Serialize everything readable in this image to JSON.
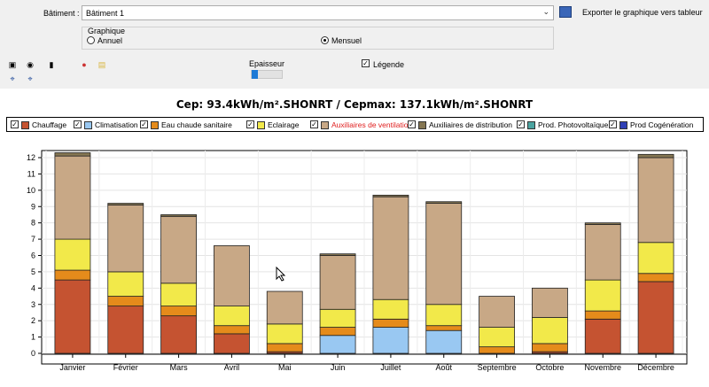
{
  "header": {
    "batiment_label": "Bâtiment :",
    "batiment_value": "Bâtiment 1",
    "export_label": "Exporter le graphique vers tableur"
  },
  "graphique": {
    "legend": "Graphique",
    "option_annuel": "Annuel",
    "option_mensuel": "Mensuel",
    "selected": "Mensuel"
  },
  "toolbar": {
    "epaisseur_label": "Epaisseur",
    "epaisseur_value": 0.1,
    "legende_label": "Légende",
    "legende_checked": true,
    "icons": [
      "save-icon",
      "camera-icon",
      "bar-chart-icon",
      "palette-icon",
      "folder-icon",
      "zoom-fit-icon",
      "zoom-reset-icon"
    ]
  },
  "chart_data": {
    "type": "bar",
    "stacked": true,
    "title": "Cep: 93.4kWh/m².SHONRT / Cepmax: 137.1kWh/m².SHONRT",
    "ylim": [
      0,
      12
    ],
    "yticks": [
      0,
      1,
      2,
      3,
      4,
      5,
      6,
      7,
      8,
      9,
      10,
      11,
      12
    ],
    "grid": true,
    "legend_position": "top",
    "categories": [
      "Janvier",
      "Février",
      "Mars",
      "Avril",
      "Mai",
      "Juin",
      "Juillet",
      "Août",
      "Septembre",
      "Octobre",
      "Novembre",
      "Décembre"
    ],
    "series": [
      {
        "name": "Chauffage",
        "color": "#c55331",
        "values": [
          4.5,
          2.9,
          2.3,
          1.2,
          0.1,
          0,
          0,
          0,
          0,
          0.1,
          2.1,
          4.4
        ]
      },
      {
        "name": "Climatisation",
        "color": "#99c8f2",
        "values": [
          0,
          0,
          0,
          0,
          0,
          1.1,
          1.6,
          1.4,
          0,
          0,
          0,
          0
        ]
      },
      {
        "name": "Eau chaude sanitaire",
        "color": "#e58b1b",
        "values": [
          0.6,
          0.6,
          0.6,
          0.5,
          0.5,
          0.5,
          0.5,
          0.3,
          0.4,
          0.5,
          0.5,
          0.5
        ]
      },
      {
        "name": "Eclairage",
        "color": "#f2e94a",
        "values": [
          1.9,
          1.5,
          1.4,
          1.2,
          1.2,
          1.1,
          1.2,
          1.3,
          1.2,
          1.6,
          1.9,
          1.9
        ]
      },
      {
        "name": "Auxiliaires de ventilation",
        "color": "#c8a886",
        "values": [
          5.1,
          4.1,
          4.1,
          3.7,
          2.0,
          3.3,
          6.3,
          6.2,
          1.9,
          1.8,
          3.4,
          5.2
        ]
      },
      {
        "name": "Auxiliaires de distribution",
        "color": "#857652",
        "values": [
          0.2,
          0.1,
          0.1,
          0,
          0,
          0.1,
          0.1,
          0.1,
          0,
          0,
          0.1,
          0.2
        ]
      },
      {
        "name": "Prod. Photovoltaïque",
        "color": "#4aa3a0",
        "values": [
          0,
          0,
          0,
          0,
          0,
          0,
          0,
          0,
          0,
          0,
          0,
          0
        ]
      },
      {
        "name": "Prod Cogénération",
        "color": "#2f3fb5",
        "values": [
          0,
          0,
          0,
          0,
          0,
          0,
          0,
          0,
          0,
          0,
          0,
          0
        ]
      }
    ],
    "legend_highlight": "Auxiliaires de ventilation",
    "highlight_color": "#e02020"
  }
}
